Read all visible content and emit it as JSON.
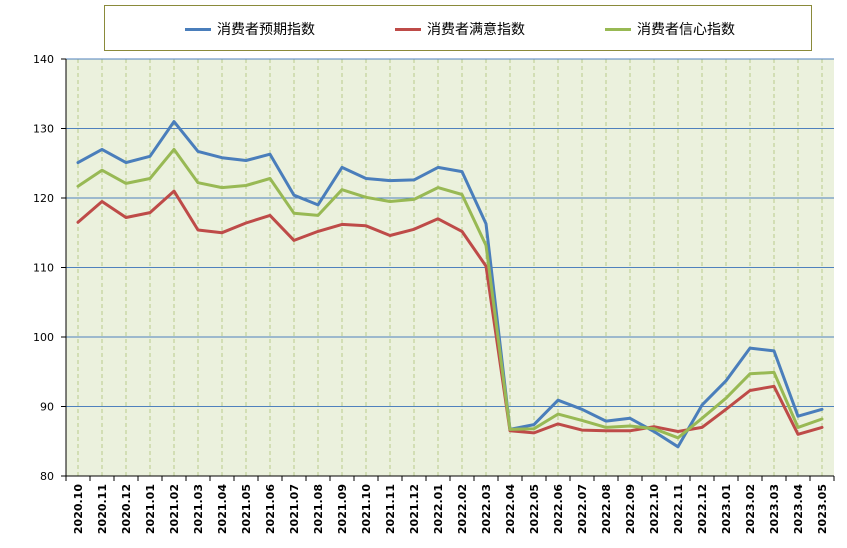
{
  "chart_data": {
    "type": "line",
    "categories": [
      "2020.10",
      "2020.11",
      "2020.12",
      "2021.01",
      "2021.02",
      "2021.03",
      "2021.04",
      "2021.05",
      "2021.06",
      "2021.07",
      "2021.08",
      "2021.09",
      "2021.10",
      "2021.11",
      "2021.12",
      "2022.01",
      "2022.02",
      "2022.03",
      "2022.04",
      "2022.05",
      "2022.06",
      "2022.07",
      "2022.08",
      "2022.09",
      "2022.10",
      "2022.11",
      "2022.12",
      "2023.01",
      "2023.02",
      "2023.03",
      "2023.04",
      "2023.05"
    ],
    "ylim": [
      80,
      140
    ],
    "yticks": [
      80,
      90,
      100,
      110,
      120,
      130,
      140
    ],
    "grid": true,
    "legend_position": "top",
    "background_color": "#ebf1dd",
    "series": [
      {
        "name": "消费者预期指数",
        "color": "#4a7ebb",
        "values": [
          125.1,
          127.0,
          125.1,
          126.0,
          131.0,
          126.7,
          125.8,
          125.4,
          126.3,
          120.4,
          119.0,
          124.4,
          122.8,
          122.5,
          122.6,
          124.4,
          123.8,
          116.3,
          86.7,
          87.4,
          90.9,
          89.6,
          87.9,
          88.3,
          86.4,
          84.2,
          90.2,
          93.7,
          98.4,
          98.0,
          88.6,
          89.6
        ]
      },
      {
        "name": "消费者满意指数",
        "color": "#be4b48",
        "values": [
          116.5,
          119.5,
          117.2,
          117.9,
          121.0,
          115.4,
          115.0,
          116.4,
          117.5,
          113.9,
          115.2,
          116.2,
          116.0,
          114.6,
          115.5,
          117.0,
          115.2,
          110.2,
          86.5,
          86.2,
          87.5,
          86.6,
          86.5,
          86.5,
          87.1,
          86.4,
          87.0,
          89.6,
          92.3,
          92.9,
          86.0,
          87.0
        ]
      },
      {
        "name": "消费者信心指数",
        "color": "#98b954",
        "values": [
          121.7,
          124.0,
          122.1,
          122.8,
          127.0,
          122.2,
          121.5,
          121.8,
          122.8,
          117.8,
          117.5,
          121.2,
          120.1,
          119.5,
          119.8,
          121.5,
          120.5,
          113.2,
          86.7,
          86.8,
          88.9,
          88.0,
          87.0,
          87.2,
          86.8,
          85.5,
          88.3,
          91.2,
          94.7,
          94.9,
          87.0,
          88.2
        ]
      }
    ]
  }
}
